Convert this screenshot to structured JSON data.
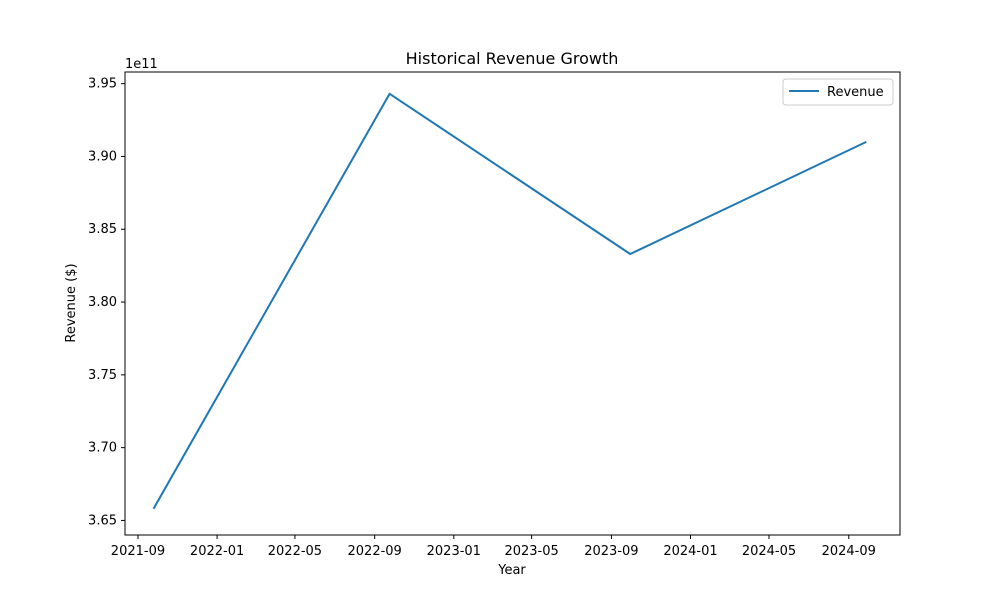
{
  "chart_data": {
    "type": "line",
    "title": "Historical Revenue Growth",
    "xlabel": "Year",
    "ylabel": "Revenue ($)",
    "y_offset_label": "1e11",
    "y_scale": 100000000000,
    "x_ticks": [
      "2021-09",
      "2022-01",
      "2022-05",
      "2022-09",
      "2023-01",
      "2023-05",
      "2023-09",
      "2024-01",
      "2024-05",
      "2024-09"
    ],
    "y_ticks": [
      "3.65",
      "3.70",
      "3.75",
      "3.80",
      "3.85",
      "3.90",
      "3.95"
    ],
    "ylim": [
      364000000000,
      395800000000
    ],
    "xlim": [
      "2021-08-12",
      "2024-11-19"
    ],
    "grid": false,
    "legend_position": "upper right",
    "series": [
      {
        "name": "Revenue",
        "color": "#1f77b4",
        "x": [
          "2021-09-25",
          "2022-09-24",
          "2023-09-30",
          "2024-09-28"
        ],
        "values": [
          365800000000,
          394300000000,
          383300000000,
          391000000000
        ]
      }
    ]
  }
}
